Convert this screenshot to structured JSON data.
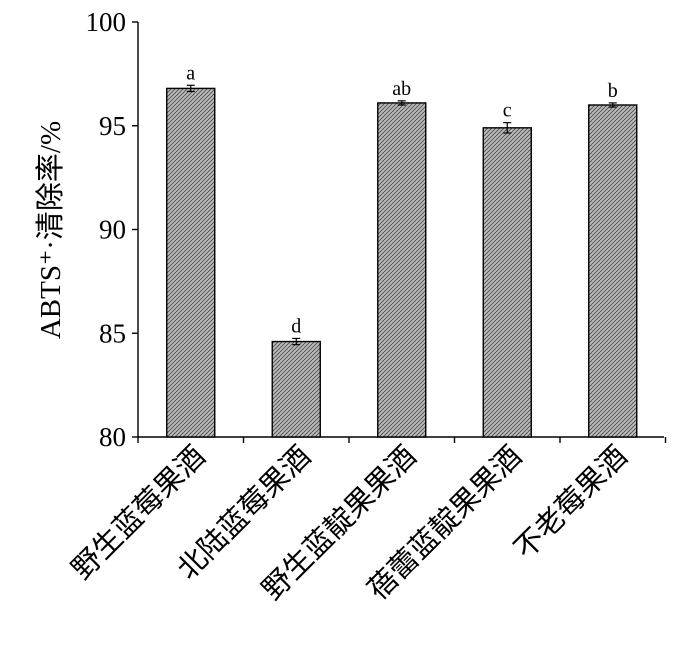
{
  "chart_data": {
    "type": "bar",
    "categories": [
      "野生蓝莓果酒",
      "北陆蓝莓果酒",
      "野生蓝靛果果酒",
      "蓓蕾蓝靛果果酒",
      "不老莓果酒"
    ],
    "values": [
      96.8,
      84.6,
      96.1,
      94.9,
      96.0
    ],
    "errors": [
      0.15,
      0.15,
      0.1,
      0.25,
      0.1
    ],
    "significance_labels": [
      "a",
      "d",
      "ab",
      "c",
      "b"
    ],
    "ylabel": "ABTS⁺·清除率/%",
    "xlabel": "",
    "ylim": [
      80,
      100
    ],
    "yticks": [
      80,
      85,
      90,
      95,
      100
    ],
    "grid": false,
    "bar_fill": "#a8a8a8"
  }
}
